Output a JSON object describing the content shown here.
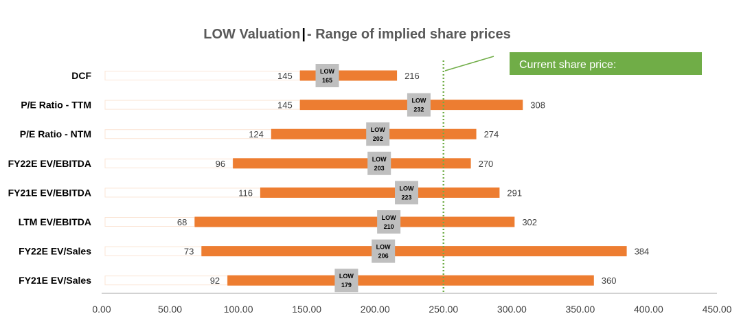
{
  "chart_data": {
    "type": "bar",
    "subtype": "floating-range",
    "title_part1": "LOW Valuation",
    "title_part2": "- Range of implied share prices",
    "categories": [
      "DCF",
      "P/E Ratio - TTM",
      "P/E Ratio - NTM",
      "FY22E EV/EBITDA",
      "FY21E EV/EBITDA",
      "LTM EV/EBITDA",
      "FY22E EV/Sales",
      "FY21E EV/Sales"
    ],
    "low": [
      145,
      145,
      124,
      96,
      116,
      68,
      73,
      92
    ],
    "high": [
      216,
      308,
      274,
      270,
      291,
      302,
      384,
      360
    ],
    "mid": [
      165,
      232,
      202,
      203,
      223,
      210,
      206,
      179
    ],
    "low_labels": [
      "145",
      "145",
      "124",
      "96",
      "116",
      "68",
      "73",
      "92"
    ],
    "high_labels": [
      "216",
      "308",
      "274",
      "270",
      "291",
      "302",
      "384",
      "360"
    ],
    "mid_label_prefix": "LOW",
    "mid_labels": [
      "165",
      "232",
      "202",
      "203",
      "223",
      "210",
      "206",
      "179"
    ],
    "xlim": [
      0,
      450
    ],
    "xticks": [
      0,
      50,
      100,
      150,
      200,
      250,
      300,
      350,
      400,
      450
    ],
    "xtick_labels": [
      "0.00",
      "50.00",
      "100.00",
      "150.00",
      "200.00",
      "250.00",
      "300.00",
      "350.00",
      "400.00",
      "450.00"
    ],
    "current_price": 250,
    "current_price_label": "Current share price:",
    "colors": {
      "bar": "#ED7D31",
      "mid_box": "#BFBFBF",
      "current_line": "#70AD47",
      "callout": "#70AD47",
      "base_stub": "#FBE5D6"
    }
  }
}
